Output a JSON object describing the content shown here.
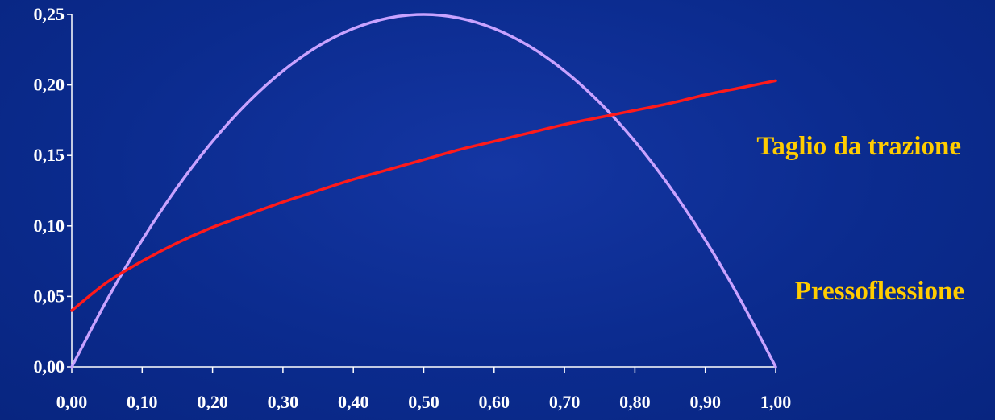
{
  "chart_data": {
    "type": "line",
    "title": "",
    "xlabel": "",
    "ylabel": "",
    "xlim": [
      0,
      1
    ],
    "ylim": [
      0,
      0.25
    ],
    "x_ticks": [
      "0,00",
      "0,10",
      "0,20",
      "0,30",
      "0,40",
      "0,50",
      "0,60",
      "0,70",
      "0,80",
      "0,90",
      "1,00"
    ],
    "y_ticks": [
      "0,00",
      "0,05",
      "0,10",
      "0,15",
      "0,20",
      "0,25"
    ],
    "grid": false,
    "legend": "none",
    "series": [
      {
        "name": "Pressoflessione",
        "color": "#c8a2ff",
        "x": [
          0.0,
          0.05,
          0.1,
          0.15,
          0.2,
          0.25,
          0.3,
          0.35,
          0.4,
          0.45,
          0.5,
          0.55,
          0.6,
          0.65,
          0.7,
          0.75,
          0.8,
          0.85,
          0.9,
          0.95,
          1.0
        ],
        "y": [
          0.0,
          0.0475,
          0.09,
          0.1275,
          0.16,
          0.1875,
          0.21,
          0.2275,
          0.24,
          0.2475,
          0.25,
          0.2475,
          0.24,
          0.2275,
          0.21,
          0.1875,
          0.16,
          0.1275,
          0.09,
          0.0475,
          0.0
        ]
      },
      {
        "name": "Taglio da trazione",
        "color": "#ff1a1a",
        "x": [
          0.0,
          0.05,
          0.1,
          0.15,
          0.2,
          0.25,
          0.3,
          0.35,
          0.4,
          0.45,
          0.5,
          0.55,
          0.6,
          0.65,
          0.7,
          0.75,
          0.8,
          0.85,
          0.9,
          0.95,
          1.0
        ],
        "y": [
          0.04,
          0.06,
          0.075,
          0.088,
          0.099,
          0.108,
          0.117,
          0.125,
          0.133,
          0.14,
          0.147,
          0.154,
          0.16,
          0.166,
          0.172,
          0.177,
          0.182,
          0.187,
          0.193,
          0.198,
          0.203
        ]
      }
    ],
    "annotations": [
      {
        "series": "Taglio da trazione",
        "text": "Taglio da trazione"
      },
      {
        "series": "Pressoflessione",
        "text": "Pressoflessione"
      }
    ]
  }
}
